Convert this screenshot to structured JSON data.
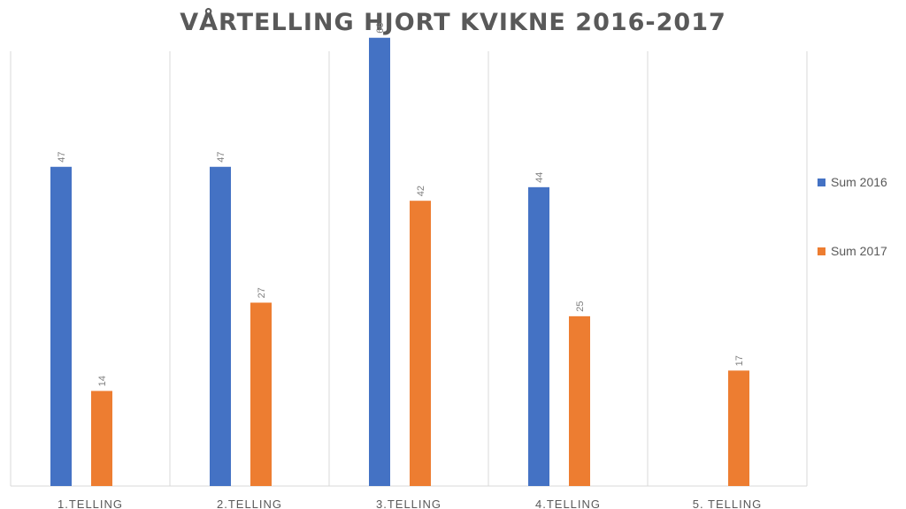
{
  "chart_data": {
    "type": "bar",
    "title": "VÅRTELLING HJORT KVIKNE 2016-2017",
    "xlabel": "",
    "ylabel": "",
    "ylim": [
      0,
      70
    ],
    "grid": "vertical-category-separators",
    "legend_position": "right",
    "categories": [
      "1.TELLING",
      "2.TELLING",
      "3.TELLING",
      "4.TELLING",
      "5. TELLING"
    ],
    "series": [
      {
        "name": "Sum 2016",
        "color": "#4472C4",
        "values": [
          47,
          47,
          66,
          44,
          null
        ]
      },
      {
        "name": "Sum 2017",
        "color": "#ED7D31",
        "values": [
          14,
          27,
          42,
          25,
          17
        ]
      }
    ]
  }
}
